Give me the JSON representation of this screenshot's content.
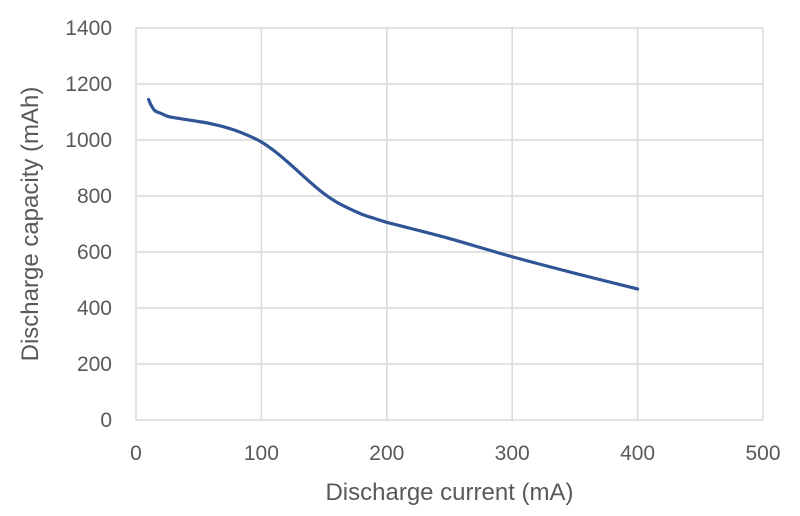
{
  "chart_data": {
    "type": "line",
    "title": "",
    "xlabel": "Discharge current (mA)",
    "ylabel": "Discharge capacity (mAh)",
    "xlim": [
      0,
      500
    ],
    "ylim": [
      0,
      1400
    ],
    "x_ticks": [
      0,
      100,
      200,
      300,
      400,
      500
    ],
    "y_ticks": [
      0,
      200,
      400,
      600,
      800,
      1000,
      1200,
      1400
    ],
    "grid": true,
    "legend": "none",
    "colors": {
      "series": "#2f5597",
      "grid": "#d9d9d9",
      "text": "#595959"
    },
    "series": [
      {
        "x": [
          10,
          12,
          15,
          20,
          25,
          30,
          40,
          50,
          60,
          70,
          80,
          90,
          100,
          110,
          120,
          130,
          140,
          150,
          160,
          170,
          180,
          190,
          200,
          220,
          250,
          300,
          350,
          400
        ],
        "values": [
          1145,
          1125,
          1105,
          1095,
          1085,
          1080,
          1073,
          1066,
          1058,
          1047,
          1033,
          1015,
          993,
          962,
          925,
          885,
          845,
          808,
          778,
          755,
          735,
          720,
          706,
          683,
          648,
          583,
          524,
          468
        ]
      }
    ]
  }
}
